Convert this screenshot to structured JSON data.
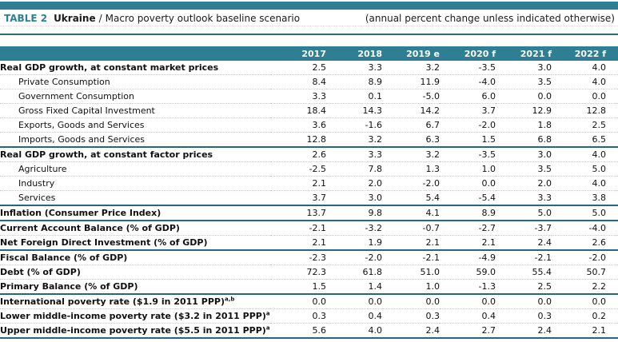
{
  "title": {
    "table_label": "TABLE 2",
    "country": "Ukraine",
    "separator": "/",
    "subtitle": "Macro poverty outlook baseline scenario",
    "note": "(annual percent change unless indicated otherwise)"
  },
  "colors": {
    "accent_teal": "#2e7f93",
    "section_divider": "#24677e",
    "dotted_separator": "#cccccc",
    "header_text": "#ffffff"
  },
  "table": {
    "columns": [
      "2017",
      "2018",
      "2019 e",
      "2020 f",
      "2021 f",
      "2022 f"
    ],
    "rows": [
      {
        "label": "Real GDP growth, at constant market prices",
        "bold": true,
        "indent": false,
        "section_start": false,
        "values": [
          "2.5",
          "3.3",
          "3.2",
          "-3.5",
          "3.0",
          "4.0"
        ]
      },
      {
        "label": "Private Consumption",
        "bold": false,
        "indent": true,
        "section_start": false,
        "values": [
          "8.4",
          "8.9",
          "11.9",
          "-4.0",
          "3.5",
          "4.0"
        ]
      },
      {
        "label": "Government Consumption",
        "bold": false,
        "indent": true,
        "section_start": false,
        "values": [
          "3.3",
          "0.1",
          "-5.0",
          "6.0",
          "0.0",
          "0.0"
        ]
      },
      {
        "label": "Gross Fixed Capital Investment",
        "bold": false,
        "indent": true,
        "section_start": false,
        "values": [
          "18.4",
          "14.3",
          "14.2",
          "3.7",
          "12.9",
          "12.8"
        ]
      },
      {
        "label": "Exports, Goods and Services",
        "bold": false,
        "indent": true,
        "section_start": false,
        "values": [
          "3.6",
          "-1.6",
          "6.7",
          "-2.0",
          "1.8",
          "2.5"
        ]
      },
      {
        "label": "Imports, Goods and Services",
        "bold": false,
        "indent": true,
        "section_start": false,
        "values": [
          "12.8",
          "3.2",
          "6.3",
          "1.5",
          "6.8",
          "6.5"
        ]
      },
      {
        "label": "Real GDP growth, at constant factor prices",
        "bold": true,
        "indent": false,
        "section_start": true,
        "values": [
          "2.6",
          "3.3",
          "3.2",
          "-3.5",
          "3.0",
          "4.0"
        ]
      },
      {
        "label": "Agriculture",
        "bold": false,
        "indent": true,
        "section_start": false,
        "values": [
          "-2.5",
          "7.8",
          "1.3",
          "1.0",
          "3.5",
          "5.0"
        ]
      },
      {
        "label": "Industry",
        "bold": false,
        "indent": true,
        "section_start": false,
        "values": [
          "2.1",
          "2.0",
          "-2.0",
          "0.0",
          "2.0",
          "4.0"
        ]
      },
      {
        "label": "Services",
        "bold": false,
        "indent": true,
        "section_start": false,
        "values": [
          "3.7",
          "3.0",
          "5.4",
          "-5.4",
          "3.3",
          "3.8"
        ]
      },
      {
        "label": "Inflation (Consumer Price Index)",
        "bold": true,
        "indent": false,
        "section_start": true,
        "values": [
          "13.7",
          "9.8",
          "4.1",
          "8.9",
          "5.0",
          "5.0"
        ]
      },
      {
        "label": "Current Account Balance (% of GDP)",
        "bold": true,
        "indent": false,
        "section_start": true,
        "values": [
          "-2.1",
          "-3.2",
          "-0.7",
          "-2.7",
          "-3.7",
          "-4.0"
        ]
      },
      {
        "label": "Net Foreign Direct Investment (% of GDP)",
        "bold": true,
        "indent": false,
        "section_start": false,
        "values": [
          "2.1",
          "1.9",
          "2.1",
          "2.1",
          "2.4",
          "2.6"
        ]
      },
      {
        "label": "Fiscal Balance (% of GDP)",
        "bold": true,
        "indent": false,
        "section_start": true,
        "values": [
          "-2.3",
          "-2.0",
          "-2.1",
          "-4.9",
          "-2.1",
          "-2.0"
        ]
      },
      {
        "label": "Debt (% of GDP)",
        "bold": true,
        "indent": false,
        "section_start": false,
        "values": [
          "72.3",
          "61.8",
          "51.0",
          "59.0",
          "55.4",
          "50.7"
        ]
      },
      {
        "label": "Primary Balance (% of GDP)",
        "bold": true,
        "indent": false,
        "section_start": false,
        "values": [
          "1.5",
          "1.4",
          "1.0",
          "-1.3",
          "2.5",
          "2.2"
        ]
      },
      {
        "label": "International poverty rate ($1.9 in 2011 PPP)",
        "sup": "a,b",
        "bold": true,
        "indent": false,
        "section_start": true,
        "values": [
          "0.0",
          "0.0",
          "0.0",
          "0.0",
          "0.0",
          "0.0"
        ]
      },
      {
        "label": "Lower middle-income poverty rate ($3.2 in 2011 PPP)",
        "sup": "a,b",
        "bold": true,
        "indent": false,
        "section_start": false,
        "values": [
          "0.3",
          "0.4",
          "0.3",
          "0.4",
          "0.3",
          "0.2"
        ]
      },
      {
        "label": "Upper middle-income poverty rate ($5.5 in 2011 PPP)",
        "sup": "a,b",
        "bold": true,
        "indent": false,
        "section_start": false,
        "values": [
          "5.6",
          "4.0",
          "2.4",
          "2.7",
          "2.4",
          "2.1"
        ]
      }
    ]
  }
}
